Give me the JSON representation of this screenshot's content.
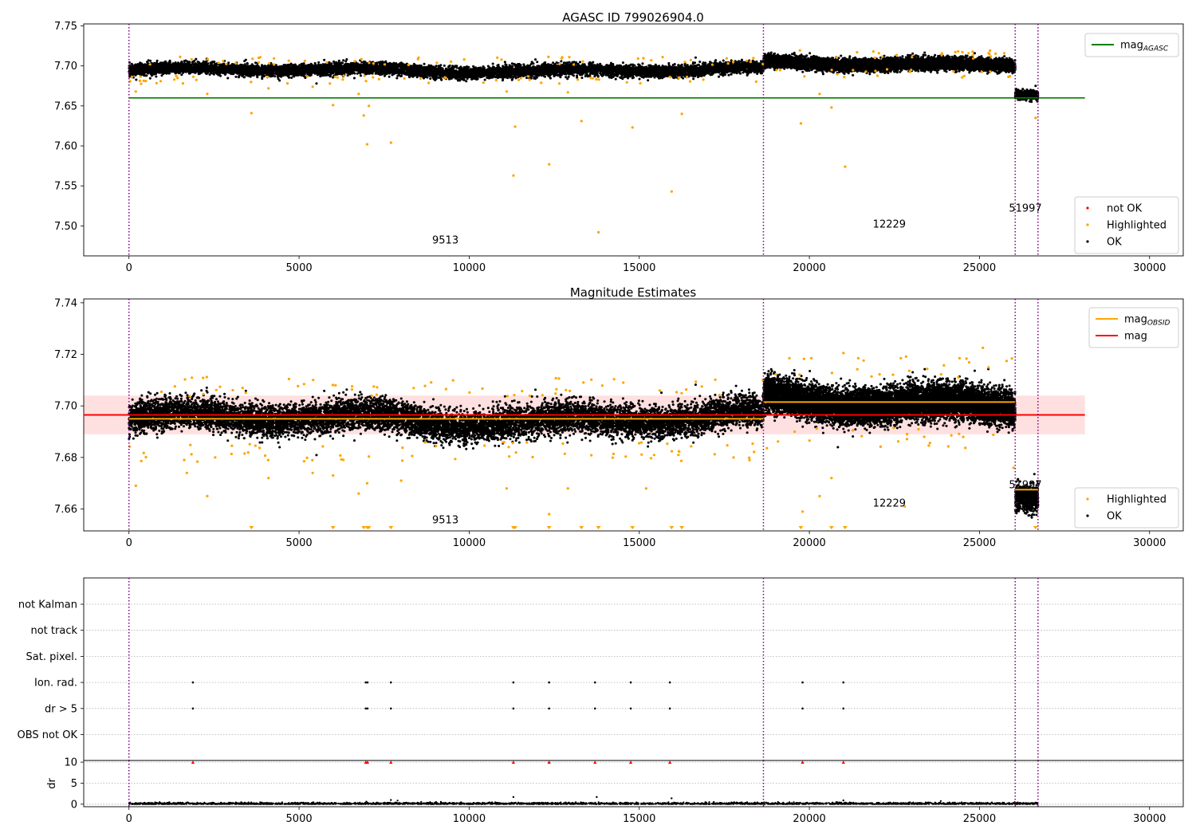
{
  "chart_data": [
    {
      "type": "scatter",
      "title": "AGASC ID 799026904.0",
      "xlim": [
        -1330,
        30990
      ],
      "ylim": [
        7.4625,
        7.7525
      ],
      "xticks": [
        0,
        5000,
        10000,
        15000,
        20000,
        25000,
        30000
      ],
      "yticks": [
        7.5,
        7.55,
        7.6,
        7.65,
        7.7,
        7.75
      ],
      "yticklabels": [
        "7.50",
        "7.55",
        "7.60",
        "7.65",
        "7.70",
        "7.75"
      ],
      "hlines": [
        {
          "name": "mag_AGASC",
          "y": 7.66,
          "x": [
            0,
            28100
          ],
          "color": "#008000"
        }
      ],
      "vlines": [
        0,
        18650,
        26050,
        26720
      ],
      "annotations": [
        {
          "text": "9513",
          "x": 9300,
          "y": 7.478
        },
        {
          "text": "12229",
          "x": 22350,
          "y": 7.498
        },
        {
          "text": "51997",
          "x": 26350,
          "y": 7.518
        }
      ],
      "segments": [
        {
          "x": [
            0,
            18650
          ],
          "center": 7.6945,
          "spread": 0.0065
        },
        {
          "x": [
            18650,
            26050
          ],
          "center": 7.7025,
          "spread": 0.0065
        },
        {
          "x": [
            26050,
            26720
          ],
          "center": 7.666,
          "spread": 0.005
        }
      ],
      "highlighted_points": [
        [
          3600,
          7.641
        ],
        [
          6000,
          7.651
        ],
        [
          6900,
          7.638
        ],
        [
          7000,
          7.602
        ],
        [
          7050,
          7.65
        ],
        [
          7700,
          7.604
        ],
        [
          11300,
          7.563
        ],
        [
          11350,
          7.624
        ],
        [
          12350,
          7.577
        ],
        [
          13300,
          7.631
        ],
        [
          13800,
          7.492
        ],
        [
          14800,
          7.623
        ],
        [
          15950,
          7.543
        ],
        [
          16250,
          7.64
        ],
        [
          19750,
          7.628
        ],
        [
          20650,
          7.648
        ],
        [
          21050,
          7.574
        ],
        [
          26650,
          7.635
        ],
        [
          200,
          7.668
        ],
        [
          2300,
          7.665
        ],
        [
          4100,
          7.672
        ],
        [
          5400,
          7.674
        ],
        [
          6750,
          7.665
        ],
        [
          11100,
          7.668
        ],
        [
          12900,
          7.667
        ],
        [
          20300,
          7.665
        ]
      ],
      "legends": [
        {
          "position": "upper right",
          "entries": [
            {
              "label": "mag",
              "sub": "AGASC",
              "color": "#008000"
            }
          ]
        },
        {
          "position": "lower right",
          "entries": [
            {
              "label": "not OK",
              "color": "#ff0000"
            },
            {
              "label": "Highlighted",
              "color": "#ffa500"
            },
            {
              "label": "OK",
              "color": "#000000"
            }
          ]
        }
      ]
    },
    {
      "type": "scatter",
      "title": "Magnitude Estimates",
      "xlim": [
        -1330,
        30990
      ],
      "ylim": [
        7.6515,
        7.7415
      ],
      "xticks": [
        0,
        5000,
        10000,
        15000,
        20000,
        25000,
        30000
      ],
      "yticks": [
        7.66,
        7.68,
        7.7,
        7.72,
        7.74
      ],
      "yticklabels": [
        "7.66",
        "7.68",
        "7.70",
        "7.72",
        "7.74"
      ],
      "hlines": [
        {
          "name": "mag",
          "y": 7.6965,
          "x": [
            -1330,
            28100
          ],
          "color": "#ff0000",
          "band": [
            7.689,
            7.704
          ]
        },
        {
          "name": "mag_OBSID",
          "y": 7.695,
          "x": [
            0,
            18650
          ],
          "color": "#ffa500"
        },
        {
          "name": "mag_OBSID",
          "y": 7.7015,
          "x": [
            18650,
            26050
          ],
          "color": "#ffa500"
        },
        {
          "name": "mag_OBSID",
          "y": 7.6675,
          "x": [
            26050,
            26720
          ],
          "color": "#ffa500"
        }
      ],
      "vlines": [
        0,
        18650,
        26050,
        26720
      ],
      "annotations": [
        {
          "text": "9513",
          "x": 9300,
          "y": 7.6545
        },
        {
          "text": "12229",
          "x": 22350,
          "y": 7.661
        },
        {
          "text": "51997",
          "x": 26350,
          "y": 7.668
        }
      ],
      "segments": [
        {
          "x": [
            0,
            18650
          ],
          "center": 7.6948,
          "spread": 0.0055
        },
        {
          "x": [
            18650,
            26050
          ],
          "center": 7.7012,
          "spread": 0.006
        },
        {
          "x": [
            26050,
            26720
          ],
          "center": 7.6665,
          "spread": 0.0045
        }
      ],
      "highlighted_points": [
        [
          200,
          7.669
        ],
        [
          1700,
          7.674
        ],
        [
          2300,
          7.665
        ],
        [
          4100,
          7.672
        ],
        [
          5400,
          7.674
        ],
        [
          6000,
          7.673
        ],
        [
          6750,
          7.666
        ],
        [
          7000,
          7.67
        ],
        [
          8000,
          7.671
        ],
        [
          11100,
          7.668
        ],
        [
          12350,
          7.658
        ],
        [
          12900,
          7.668
        ],
        [
          15200,
          7.668
        ],
        [
          19800,
          7.659
        ],
        [
          20300,
          7.665
        ],
        [
          20650,
          7.672
        ],
        [
          22800,
          7.661
        ],
        [
          25100,
          7.7225
        ],
        [
          21000,
          7.7205
        ],
        [
          26000,
          7.676
        ]
      ],
      "clipped_markers_x": [
        3600,
        6000,
        6900,
        7000,
        7050,
        7700,
        11300,
        11350,
        12350,
        13300,
        13800,
        14800,
        15950,
        16250,
        19750,
        20650,
        21050,
        26650
      ],
      "legends": [
        {
          "position": "upper right",
          "entries": [
            {
              "label": "mag",
              "sub": "OBSID",
              "color": "#ffa500"
            },
            {
              "label": "mag",
              "color": "#ff0000"
            }
          ]
        },
        {
          "position": "lower right",
          "entries": [
            {
              "label": "Highlighted",
              "color": "#ffa500"
            },
            {
              "label": "OK",
              "color": "#000000"
            }
          ]
        }
      ]
    },
    {
      "type": "scatter",
      "title": "",
      "xlim": [
        -1330,
        30990
      ],
      "categories": [
        "not Kalman",
        "not track",
        "Sat. pixel.",
        "Ion. rad.",
        "dr > 5",
        "OBS not OK"
      ],
      "vlines": [
        0,
        18650,
        26050,
        26720
      ],
      "flag_points": {
        "Ion. rad.": [
          1880,
          6960,
          7010,
          7700,
          11300,
          12350,
          13700,
          14750,
          15900,
          19800,
          21000
        ],
        "dr > 5": [
          1880,
          6960,
          7010,
          7700,
          11300,
          12350,
          13700,
          14750,
          15900,
          19800,
          21000
        ]
      }
    },
    {
      "type": "scatter",
      "title": "",
      "xlim": [
        -1330,
        30990
      ],
      "ylim": [
        -0.6,
        10.4
      ],
      "xticks": [
        0,
        5000,
        10000,
        15000,
        20000,
        25000,
        30000
      ],
      "yticks": [
        0,
        5,
        10
      ],
      "yticklabels": [
        "0",
        "5",
        "10"
      ],
      "ylabel": "dr",
      "vlines": [
        0,
        18650,
        26050,
        26720
      ],
      "clipped_markers_x": [
        1880,
        6960,
        7010,
        7700,
        11300,
        12350,
        13700,
        14750,
        15900,
        19800,
        21000
      ],
      "outlier_points": [
        [
          7700,
          1.0
        ],
        [
          11300,
          1.7
        ],
        [
          13750,
          1.7
        ],
        [
          15950,
          1.4
        ],
        [
          21000,
          0.9
        ],
        [
          6980,
          0.6
        ]
      ]
    }
  ]
}
